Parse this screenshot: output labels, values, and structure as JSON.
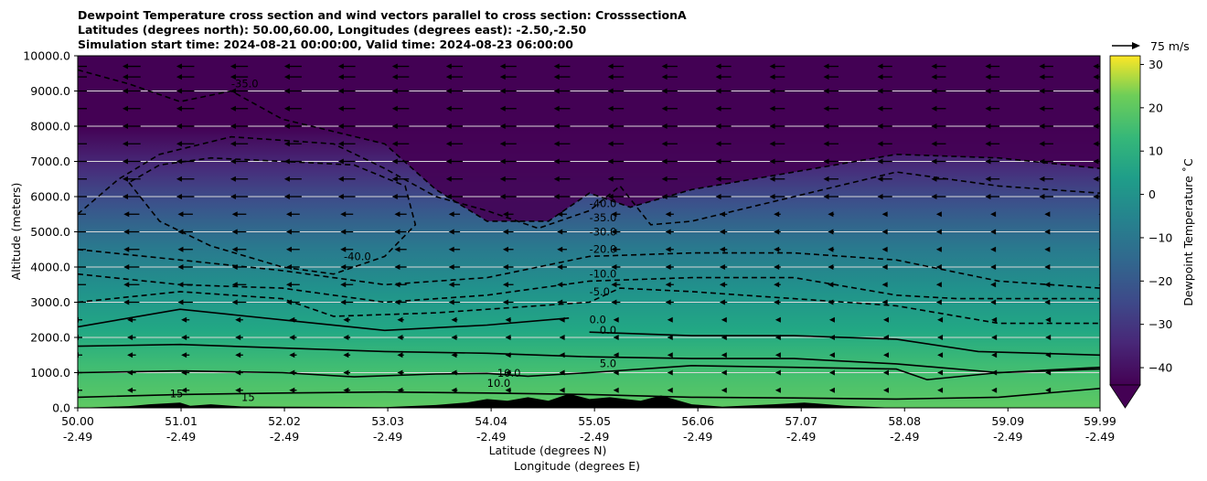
{
  "chart_data": {
    "type": "contour",
    "title_lines": [
      "Dewpoint Temperature cross section and wind vectors parallel to cross section: CrosssectionA",
      "Latitudes (degrees north): 50.00,60.00, Longitudes (degrees east): -2.50,-2.50",
      "Simulation start time: 2024-08-21 00:00:00, Valid time: 2024-08-23 06:00:00"
    ],
    "xlabel": "Latitude (degrees N)",
    "xlabel2": "Longitude (degrees E)",
    "ylabel": "Altitude (meters)",
    "ylim": [
      0,
      10000
    ],
    "xlim": [
      50.0,
      59.99
    ],
    "y_ticks": [
      "0.0",
      "1000.0",
      "2000.0",
      "3000.0",
      "4000.0",
      "5000.0",
      "6000.0",
      "7000.0",
      "8000.0",
      "9000.0",
      "10000.0"
    ],
    "y_tick_values": [
      0,
      1000,
      2000,
      3000,
      4000,
      5000,
      6000,
      7000,
      8000,
      9000,
      10000
    ],
    "x_ticks": [
      {
        "value": 50.0,
        "lat": "50.00",
        "lon": "-2.49"
      },
      {
        "value": 51.01,
        "lat": "51.01",
        "lon": "-2.49"
      },
      {
        "value": 52.02,
        "lat": "52.02",
        "lon": "-2.49"
      },
      {
        "value": 53.03,
        "lat": "53.03",
        "lon": "-2.49"
      },
      {
        "value": 54.04,
        "lat": "54.04",
        "lon": "-2.49"
      },
      {
        "value": 55.05,
        "lat": "55.05",
        "lon": "-2.49"
      },
      {
        "value": 56.06,
        "lat": "56.06",
        "lon": "-2.49"
      },
      {
        "value": 57.07,
        "lat": "57.07",
        "lon": "-2.49"
      },
      {
        "value": 58.08,
        "lat": "58.08",
        "lon": "-2.49"
      },
      {
        "value": 59.09,
        "lat": "59.09",
        "lon": "-2.49"
      },
      {
        "value": 59.99,
        "lat": "59.99",
        "lon": "-2.49"
      }
    ],
    "colorbar": {
      "label": "Dewpoint Temperature ˚C",
      "range": [
        -44,
        32
      ],
      "ticks": [
        {
          "value": 30,
          "label": "30"
        },
        {
          "value": 20,
          "label": "20"
        },
        {
          "value": 10,
          "label": "10"
        },
        {
          "value": 0,
          "label": "0"
        },
        {
          "value": -10,
          "label": "−10"
        },
        {
          "value": -20,
          "label": "−20"
        },
        {
          "value": -30,
          "label": "−30"
        },
        {
          "value": -40,
          "label": "−40"
        }
      ],
      "colormap": "viridis",
      "extend": "min"
    },
    "quiver_key": {
      "label": "75 m/s"
    },
    "grid": "horizontal",
    "contours": [
      {
        "level": 15,
        "style": "solid",
        "points": [
          [
            50.0,
            300
          ],
          [
            51.0,
            380
          ],
          [
            52.0,
            420
          ],
          [
            53.0,
            450
          ],
          [
            54.0,
            420
          ],
          [
            55.0,
            380
          ],
          [
            56.0,
            300
          ],
          [
            57.0,
            280
          ],
          [
            58.0,
            250
          ],
          [
            59.0,
            300
          ],
          [
            59.99,
            550
          ]
        ]
      },
      {
        "level": 10,
        "style": "solid",
        "points": [
          [
            50.0,
            1000
          ],
          [
            51.0,
            1050
          ],
          [
            52.0,
            1000
          ],
          [
            52.7,
            880
          ],
          [
            53.5,
            960
          ],
          [
            54.0,
            980
          ],
          [
            54.4,
            900
          ],
          [
            55.0,
            1000
          ],
          [
            56.0,
            1200
          ],
          [
            57.0,
            1150
          ],
          [
            58.0,
            1100
          ],
          [
            58.3,
            800
          ],
          [
            59.0,
            1000
          ],
          [
            59.99,
            1150
          ]
        ]
      },
      {
        "level": 5,
        "style": "solid",
        "points": [
          [
            50.0,
            1750
          ],
          [
            51.0,
            1800
          ],
          [
            52.0,
            1700
          ],
          [
            53.0,
            1600
          ],
          [
            54.0,
            1550
          ],
          [
            55.0,
            1450
          ],
          [
            56.0,
            1400
          ],
          [
            57.0,
            1400
          ],
          [
            58.0,
            1250
          ],
          [
            59.0,
            1000
          ],
          [
            59.99,
            1100
          ]
        ]
      },
      {
        "level": 0,
        "style": "solid",
        "points": [
          [
            50.0,
            2300
          ],
          [
            51.0,
            2800
          ],
          [
            52.0,
            2500
          ],
          [
            53.0,
            2200
          ],
          [
            54.0,
            2350
          ],
          [
            54.8,
            2550
          ]
        ]
      },
      {
        "level": 0,
        "style": "solid",
        "points": [
          [
            55.0,
            2150
          ],
          [
            56.0,
            2050
          ],
          [
            57.0,
            2050
          ],
          [
            58.0,
            1950
          ],
          [
            58.8,
            1600
          ],
          [
            59.99,
            1500
          ]
        ]
      },
      {
        "level": -5,
        "style": "dashed",
        "points": [
          [
            50.0,
            3000
          ],
          [
            51.0,
            3300
          ],
          [
            52.0,
            3100
          ],
          [
            52.5,
            2600
          ],
          [
            53.5,
            2700
          ],
          [
            55.0,
            3000
          ],
          [
            55.3,
            3400
          ],
          [
            56.0,
            3300
          ],
          [
            57.0,
            3100
          ],
          [
            58.0,
            2900
          ],
          [
            59.0,
            2400
          ],
          [
            59.99,
            2400
          ]
        ]
      },
      {
        "level": -10,
        "style": "dashed",
        "points": [
          [
            50.0,
            3800
          ],
          [
            51.0,
            3500
          ],
          [
            52.0,
            3400
          ],
          [
            53.0,
            3000
          ],
          [
            54.0,
            3200
          ],
          [
            55.0,
            3600
          ],
          [
            56.0,
            3700
          ],
          [
            57.0,
            3700
          ],
          [
            58.0,
            3200
          ],
          [
            58.6,
            3100
          ],
          [
            59.99,
            3100
          ]
        ]
      },
      {
        "level": -20,
        "style": "dashed",
        "points": [
          [
            50.0,
            4500
          ],
          [
            51.0,
            4200
          ],
          [
            52.0,
            3900
          ],
          [
            53.0,
            3500
          ],
          [
            54.0,
            3700
          ],
          [
            55.0,
            4300
          ],
          [
            56.0,
            4400
          ],
          [
            57.0,
            4400
          ],
          [
            58.0,
            4200
          ],
          [
            59.0,
            3600
          ],
          [
            59.99,
            3400
          ]
        ]
      },
      {
        "level": -30,
        "style": "dashed",
        "points": [
          [
            50.0,
            5500
          ],
          [
            50.4,
            6500
          ],
          [
            50.8,
            7200
          ],
          [
            51.5,
            7700
          ],
          [
            52.5,
            7500
          ],
          [
            53.0,
            6800
          ],
          [
            53.5,
            6000
          ],
          [
            54.0,
            5600
          ],
          [
            54.5,
            5100
          ],
          [
            55.0,
            5600
          ],
          [
            55.3,
            6300
          ],
          [
            55.6,
            5200
          ],
          [
            56.0,
            5300
          ],
          [
            57.0,
            6000
          ],
          [
            58.0,
            6700
          ],
          [
            59.0,
            6300
          ],
          [
            59.99,
            6100
          ]
        ]
      },
      {
        "level": -35,
        "style": "dashed",
        "points": [
          [
            50.0,
            9600
          ],
          [
            50.5,
            9200
          ],
          [
            51.0,
            8700
          ],
          [
            51.5,
            9000
          ],
          [
            52.0,
            8200
          ],
          [
            53.0,
            7500
          ],
          [
            53.5,
            6200
          ],
          [
            54.0,
            5300
          ],
          [
            54.6,
            5300
          ],
          [
            55.0,
            6100
          ],
          [
            55.4,
            5700
          ],
          [
            56.0,
            6200
          ],
          [
            57.0,
            6700
          ],
          [
            58.0,
            7200
          ],
          [
            59.0,
            7100
          ],
          [
            59.99,
            6800
          ]
        ]
      },
      {
        "level": -40,
        "style": "dashed",
        "points": [
          [
            50.5,
            6400
          ],
          [
            50.8,
            5300
          ],
          [
            51.3,
            4600
          ],
          [
            52.0,
            4000
          ],
          [
            52.5,
            3800
          ],
          [
            53.0,
            4300
          ],
          [
            53.3,
            5200
          ],
          [
            53.2,
            6300
          ],
          [
            52.7,
            6900
          ],
          [
            52.0,
            7000
          ],
          [
            51.3,
            7100
          ],
          [
            50.8,
            6900
          ],
          [
            50.5,
            6400
          ]
        ]
      }
    ],
    "contour_labels": [
      {
        "x": 51.5,
        "y": 9100,
        "text": "-35.0"
      },
      {
        "x": 52.6,
        "y": 4200,
        "text": "-40.0"
      },
      {
        "x": 55.0,
        "y": 5700,
        "text": "-40.0"
      },
      {
        "x": 55.0,
        "y": 5300,
        "text": "-35.0"
      },
      {
        "x": 55.0,
        "y": 4900,
        "text": "-30.0"
      },
      {
        "x": 55.0,
        "y": 4400,
        "text": "-20.0"
      },
      {
        "x": 55.0,
        "y": 3700,
        "text": "-10.0"
      },
      {
        "x": 55.0,
        "y": 3200,
        "text": "-5.0"
      },
      {
        "x": 55.0,
        "y": 2400,
        "text": "0.0"
      },
      {
        "x": 55.1,
        "y": 2100,
        "text": "0.0"
      },
      {
        "x": 55.1,
        "y": 1150,
        "text": "5.0"
      },
      {
        "x": 54.1,
        "y": 880,
        "text": "10.0"
      },
      {
        "x": 54.0,
        "y": 600,
        "text": "10.0"
      },
      {
        "x": 50.9,
        "y": 300,
        "text": "15"
      },
      {
        "x": 51.6,
        "y": 200,
        "text": "15"
      }
    ],
    "terrain": [
      [
        50.0,
        0
      ],
      [
        50.5,
        50
      ],
      [
        50.7,
        100
      ],
      [
        51.0,
        150
      ],
      [
        51.1,
        60
      ],
      [
        51.3,
        100
      ],
      [
        51.6,
        40
      ],
      [
        52.0,
        30
      ],
      [
        53.0,
        20
      ],
      [
        53.5,
        80
      ],
      [
        53.8,
        150
      ],
      [
        54.0,
        250
      ],
      [
        54.2,
        200
      ],
      [
        54.4,
        300
      ],
      [
        54.6,
        200
      ],
      [
        54.8,
        400
      ],
      [
        55.0,
        250
      ],
      [
        55.2,
        300
      ],
      [
        55.5,
        200
      ],
      [
        55.7,
        350
      ],
      [
        56.0,
        100
      ],
      [
        56.3,
        30
      ],
      [
        56.8,
        100
      ],
      [
        57.1,
        150
      ],
      [
        57.5,
        60
      ],
      [
        58.0,
        0
      ]
    ]
  }
}
